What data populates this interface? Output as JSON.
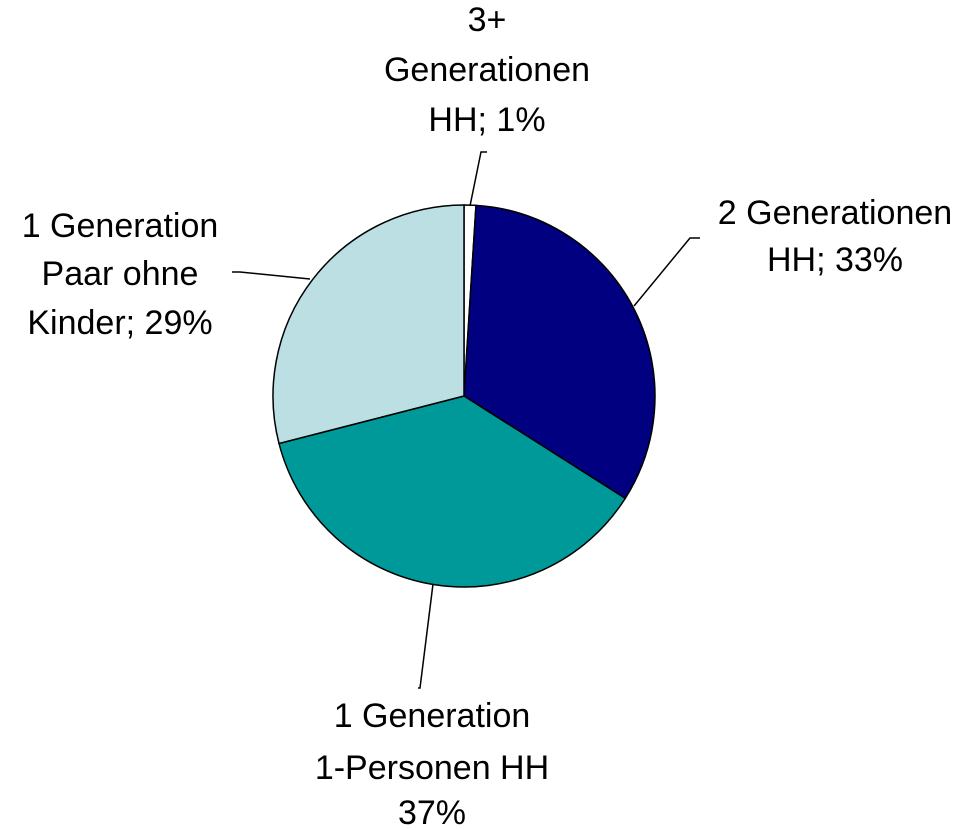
{
  "chart_data": {
    "type": "pie",
    "values": [
      1,
      33,
      37,
      29
    ],
    "value_labels": [
      [
        "3+",
        "Generationen",
        "HH; 1%"
      ],
      [
        "2 Generationen",
        "HH; 33%"
      ],
      [
        "1 Generation",
        "1-Personen HH",
        "37%"
      ],
      [
        "1 Generation",
        "Paar ohne",
        "Kinder; 29%"
      ]
    ],
    "colors": [
      "#ffffff",
      "#000080",
      "#009999",
      "#bbdfe3"
    ]
  }
}
